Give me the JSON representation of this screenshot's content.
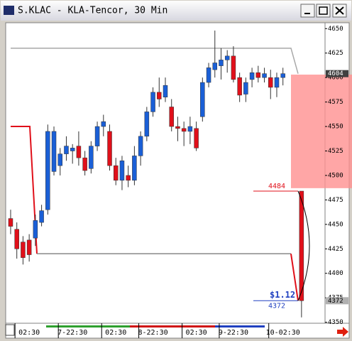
{
  "window": {
    "title": "S.KLAC - KLA-Tencor, 30 Min"
  },
  "chart_data": {
    "type": "candlestick",
    "ylim": [
      4349,
      4656
    ],
    "yticks": [
      4350,
      4375,
      4400,
      4425,
      4450,
      4475,
      4500,
      4525,
      4550,
      4575,
      4600,
      4625,
      4650
    ],
    "xlim": [
      -0.8,
      50.8
    ],
    "xticks": [
      {
        "value": 3,
        "label": "02:30"
      },
      {
        "value": 10,
        "label": "7-22:30"
      },
      {
        "value": 17,
        "label": "02:30"
      },
      {
        "value": 23,
        "label": "8-22:30"
      },
      {
        "value": 30,
        "label": "02:30"
      },
      {
        "value": 36,
        "label": "9-22:30"
      },
      {
        "value": 44,
        "label": "10-02:30"
      }
    ],
    "up_color": "#1a5fd6",
    "down_color": "#e0101a",
    "open": [
      4456,
      4445,
      4432,
      4434,
      4436,
      4452,
      4465,
      4504,
      4510,
      4522,
      4525,
      4530,
      4518,
      4507,
      4530,
      4550,
      4545,
      4510,
      4495,
      4500,
      4495,
      4520,
      4540,
      4565,
      4585,
      4580,
      4570,
      4550,
      4548,
      4545,
      4548,
      4560,
      4595,
      4608,
      4612,
      4618,
      4622,
      4600,
      4583,
      4598,
      4605,
      4600,
      4600,
      4590,
      4600,
      null,
      null,
      4484
    ],
    "high": [
      4465,
      4452,
      4438,
      4440,
      4460,
      4470,
      4552,
      4550,
      4528,
      4540,
      4532,
      4545,
      4525,
      4535,
      4555,
      4562,
      4552,
      4518,
      4520,
      4510,
      4530,
      4545,
      4570,
      4590,
      4600,
      4600,
      4578,
      4560,
      4555,
      4560,
      4555,
      4600,
      4615,
      4648,
      4630,
      4628,
      4632,
      4605,
      4600,
      4610,
      4612,
      4610,
      4608,
      4605,
      4610,
      null,
      null,
      4484
    ],
    "low": [
      4440,
      4415,
      4409,
      4412,
      4428,
      4448,
      4460,
      4500,
      4500,
      4515,
      4512,
      4510,
      4500,
      4502,
      4525,
      4540,
      4505,
      4490,
      4485,
      4488,
      4490,
      4510,
      4535,
      4560,
      4570,
      4575,
      4545,
      4535,
      4530,
      4532,
      4525,
      4555,
      4590,
      4600,
      4598,
      4605,
      4595,
      4575,
      4575,
      4590,
      4595,
      4595,
      4578,
      4580,
      4592,
      null,
      null,
      4355
    ],
    "close": [
      4448,
      4425,
      4416,
      4419,
      4454,
      4464,
      4545,
      4545,
      4522,
      4530,
      4528,
      4518,
      4505,
      4530,
      4550,
      4555,
      4510,
      4495,
      4515,
      4495,
      4520,
      4540,
      4565,
      4585,
      4578,
      4592,
      4550,
      4548,
      4545,
      4550,
      4528,
      4595,
      4610,
      4615,
      4618,
      4622,
      4598,
      4582,
      4595,
      4605,
      4600,
      4604,
      4590,
      4600,
      4604,
      null,
      null,
      4372
    ],
    "upper_line": 4630,
    "lower_line": 4420,
    "trail_start": 4550,
    "zone": [
      4487,
      4603
    ],
    "last_price": 4604,
    "marker_price": 4372,
    "high_label": 4484,
    "change_label": "$1.12"
  }
}
